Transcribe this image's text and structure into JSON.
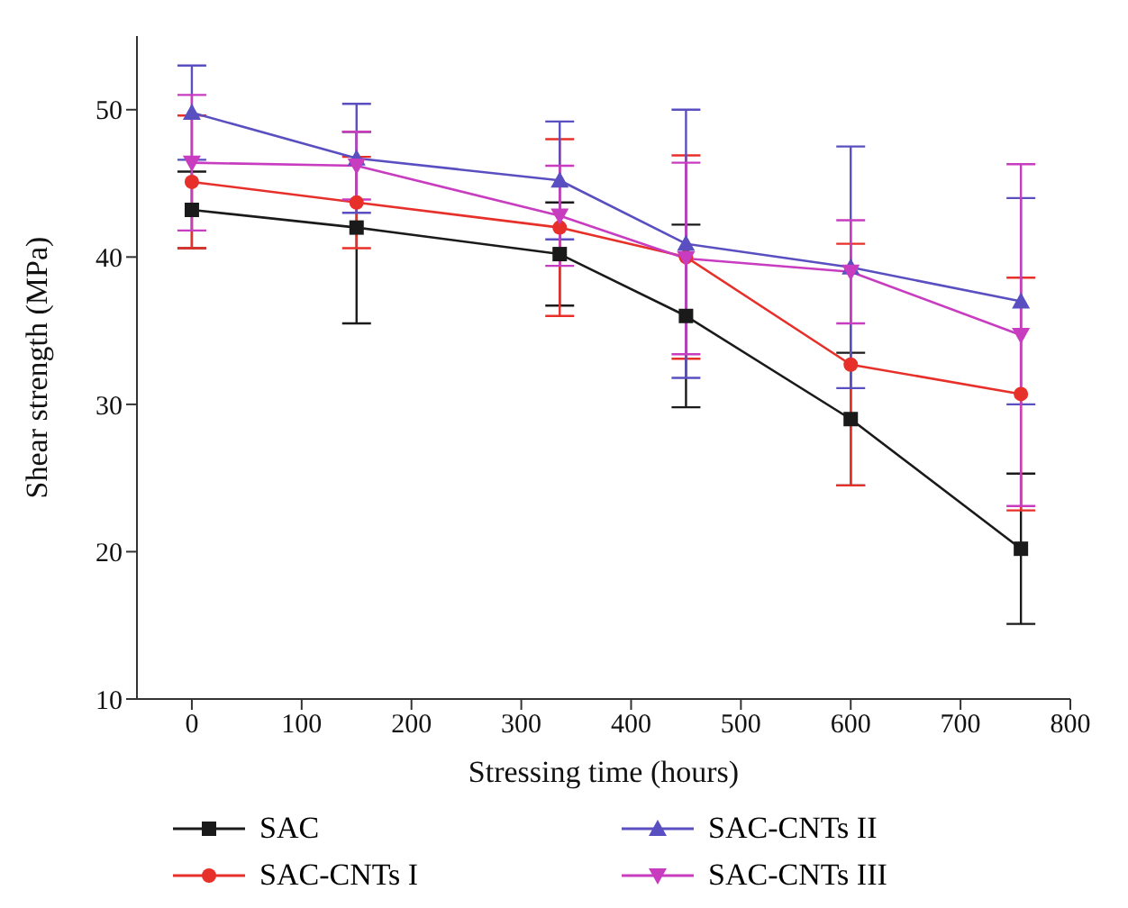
{
  "chart_data": {
    "type": "line",
    "xlabel": "Stressing time (hours)",
    "ylabel": "Shear strength (MPa)",
    "x": [
      0,
      150,
      335,
      450,
      600,
      755
    ],
    "xlim": [
      -50,
      800
    ],
    "xticks": [
      0,
      100,
      200,
      300,
      400,
      500,
      600,
      700,
      800
    ],
    "ylim": [
      10,
      55
    ],
    "yticks": [
      10,
      20,
      30,
      40,
      50
    ],
    "grid": false,
    "legend": "bottom",
    "series": [
      {
        "name": "SAC",
        "color": "#1a1a1a",
        "marker": "square",
        "values": [
          43.2,
          42,
          40.2,
          36,
          29,
          20.2
        ],
        "errors": [
          2.6,
          6.5,
          3.5,
          6.2,
          4.5,
          5.1
        ]
      },
      {
        "name": "SAC-CNTs I",
        "color": "#e8302a",
        "marker": "circle",
        "values": [
          45.1,
          43.7,
          42,
          40,
          32.7,
          30.7
        ],
        "errors": [
          4.5,
          3.1,
          6,
          6.9,
          8.2,
          7.9
        ]
      },
      {
        "name": "SAC-CNTs II",
        "color": "#5a4fc0",
        "marker": "triangle",
        "values": [
          49.8,
          46.7,
          45.2,
          40.9,
          39.3,
          37
        ],
        "errors": [
          3.2,
          3.7,
          4,
          9.1,
          8.2,
          7
        ]
      },
      {
        "name": "SAC-CNTs III",
        "color": "#c83cc0",
        "marker": "triangle-down",
        "values": [
          46.4,
          46.2,
          42.8,
          39.9,
          39,
          34.7
        ],
        "errors": [
          4.6,
          2.3,
          3.4,
          6.5,
          3.5,
          11.6
        ]
      }
    ]
  }
}
